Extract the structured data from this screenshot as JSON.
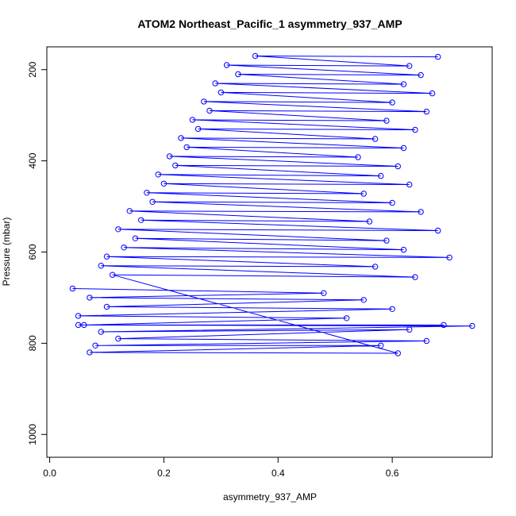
{
  "chart_data": {
    "type": "scatter",
    "title": "ATOM2 Northeast_Pacific_1 asymmetry_937_AMP",
    "xlabel": "asymmetry_937_AMP",
    "ylabel": "Pressure (mbar)",
    "xlim": [
      -0.005,
      0.775
    ],
    "ylim": [
      1050,
      150
    ],
    "y_reversed": true,
    "xticks": [
      0.0,
      0.2,
      0.4,
      0.6
    ],
    "xtick_labels": [
      "0.0",
      "0.2",
      "0.4",
      "0.6"
    ],
    "yticks": [
      200,
      400,
      600,
      800,
      1000
    ],
    "ytick_labels": [
      "200",
      "400",
      "600",
      "800",
      "1000"
    ],
    "grid": false,
    "legend": "none",
    "series": [
      {
        "style": "points-and-lines",
        "color": "#0000ff",
        "marker": "open-circle",
        "x": [
          0.04,
          0.48,
          0.07,
          0.55,
          0.1,
          0.6,
          0.05,
          0.52,
          0.06,
          0.69,
          0.05,
          0.74,
          0.09,
          0.63,
          0.12,
          0.66,
          0.08,
          0.58,
          0.07,
          0.61,
          0.11,
          0.64,
          0.09,
          0.57,
          0.1,
          0.7,
          0.13,
          0.62,
          0.15,
          0.59,
          0.12,
          0.68,
          0.16,
          0.56,
          0.14,
          0.65,
          0.18,
          0.6,
          0.17,
          0.55,
          0.2,
          0.63,
          0.19,
          0.58,
          0.22,
          0.61,
          0.21,
          0.54,
          0.24,
          0.62,
          0.23,
          0.57,
          0.26,
          0.64,
          0.25,
          0.59,
          0.28,
          0.66,
          0.27,
          0.6,
          0.3,
          0.67,
          0.29,
          0.62,
          0.33,
          0.65,
          0.31,
          0.63,
          0.36,
          0.68
        ],
        "y": [
          680,
          690,
          700,
          705,
          720,
          725,
          740,
          745,
          760,
          760,
          760,
          762,
          775,
          770,
          790,
          795,
          805,
          805,
          820,
          822,
          650,
          655,
          630,
          632,
          610,
          612,
          590,
          595,
          570,
          575,
          550,
          553,
          530,
          533,
          510,
          512,
          490,
          492,
          470,
          472,
          450,
          452,
          430,
          433,
          410,
          412,
          390,
          392,
          370,
          372,
          350,
          352,
          330,
          332,
          310,
          312,
          290,
          292,
          270,
          272,
          250,
          252,
          230,
          232,
          210,
          212,
          190,
          192,
          170,
          172
        ]
      }
    ]
  }
}
